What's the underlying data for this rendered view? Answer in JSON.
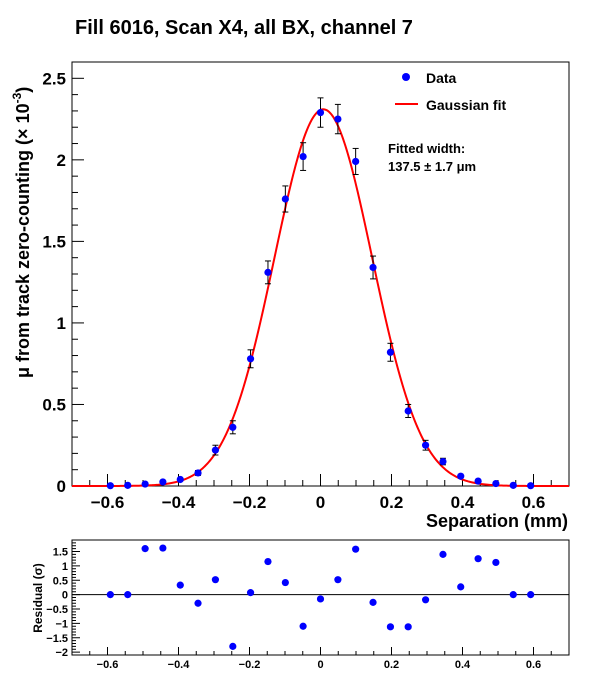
{
  "chart_data": [
    {
      "type": "scatter",
      "title": "Fill 6016, Scan X4, all BX, channel 7",
      "xlabel": "Separation (mm)",
      "ylabel_main": "μ from track zero-counting",
      "ylabel_unit": "(× 10",
      "ylabel_exp": "-3",
      "ylabel_close": ")",
      "xlim": [
        -0.7,
        0.7
      ],
      "ylim": [
        0,
        2.6
      ],
      "xticks": [
        "−0.6",
        "−0.4",
        "−0.2",
        "0",
        "0.2",
        "0.4",
        "0.6"
      ],
      "xtick_values": [
        -0.6,
        -0.4,
        -0.2,
        0,
        0.2,
        0.4,
        0.6
      ],
      "yticks": [
        "0",
        "0.5",
        "1",
        "1.5",
        "2",
        "2.5"
      ],
      "ytick_values": [
        0,
        0.5,
        1,
        1.5,
        2,
        2.5
      ],
      "legend": [
        {
          "label": "Data",
          "marker": "point"
        },
        {
          "label": "Gaussian fit",
          "marker": "line"
        }
      ],
      "annotation_line1": "Fitted width:",
      "annotation_line2": "137.5 ± 1.7 μm",
      "series": [
        {
          "name": "Data",
          "x": [
            -0.592,
            -0.543,
            -0.494,
            -0.444,
            -0.395,
            -0.345,
            -0.296,
            -0.247,
            -0.197,
            -0.148,
            -0.099,
            -0.049,
            0.0,
            0.049,
            0.099,
            0.148,
            0.197,
            0.247,
            0.296,
            0.345,
            0.395,
            0.444,
            0.494,
            0.543,
            0.592
          ],
          "y": [
            0.002,
            0.004,
            0.012,
            0.025,
            0.04,
            0.08,
            0.22,
            0.36,
            0.78,
            1.31,
            1.76,
            2.02,
            2.29,
            2.25,
            1.99,
            1.34,
            0.82,
            0.46,
            0.25,
            0.15,
            0.06,
            0.03,
            0.015,
            0.004,
            0.002
          ],
          "yerr": [
            0.003,
            0.004,
            0.006,
            0.008,
            0.01,
            0.015,
            0.03,
            0.04,
            0.055,
            0.07,
            0.08,
            0.085,
            0.09,
            0.09,
            0.08,
            0.07,
            0.055,
            0.04,
            0.03,
            0.02,
            0.012,
            0.008,
            0.006,
            0.004,
            0.003
          ],
          "color": "#0000ff"
        },
        {
          "name": "Gaussian fit",
          "function": "gaussian",
          "amplitude": 2.31,
          "mean": 0.008,
          "sigma_mm": 0.1375,
          "color": "#ff0000"
        }
      ]
    },
    {
      "type": "scatter",
      "ylabel": "Residual (σ)",
      "xlim": [
        -0.7,
        0.7
      ],
      "ylim": [
        -2.1,
        1.9
      ],
      "xticks": [
        "−0.6",
        "−0.4",
        "−0.2",
        "0",
        "0.2",
        "0.4",
        "0.6"
      ],
      "xtick_values": [
        -0.6,
        -0.4,
        -0.2,
        0,
        0.2,
        0.4,
        0.6
      ],
      "yticks": [
        "−2",
        "−1.5",
        "−1",
        "−0.5",
        "0",
        "0.5",
        "1",
        "1.5"
      ],
      "ytick_values": [
        -2,
        -1.5,
        -1,
        -0.5,
        0,
        0.5,
        1,
        1.5
      ],
      "series": [
        {
          "name": "Residual",
          "x": [
            -0.592,
            -0.543,
            -0.494,
            -0.444,
            -0.395,
            -0.345,
            -0.296,
            -0.247,
            -0.197,
            -0.148,
            -0.099,
            -0.049,
            0.0,
            0.049,
            0.099,
            0.148,
            0.197,
            0.247,
            0.296,
            0.345,
            0.395,
            0.444,
            0.494,
            0.543,
            0.592
          ],
          "y": [
            0.0,
            0.0,
            1.6,
            1.62,
            0.33,
            -0.3,
            0.52,
            -1.8,
            0.07,
            1.15,
            0.42,
            -1.1,
            -0.15,
            0.52,
            1.58,
            -0.27,
            -1.12,
            -1.12,
            -0.18,
            1.4,
            0.27,
            1.25,
            1.12,
            0.0,
            0.0
          ],
          "color": "#0000ff"
        }
      ]
    }
  ]
}
